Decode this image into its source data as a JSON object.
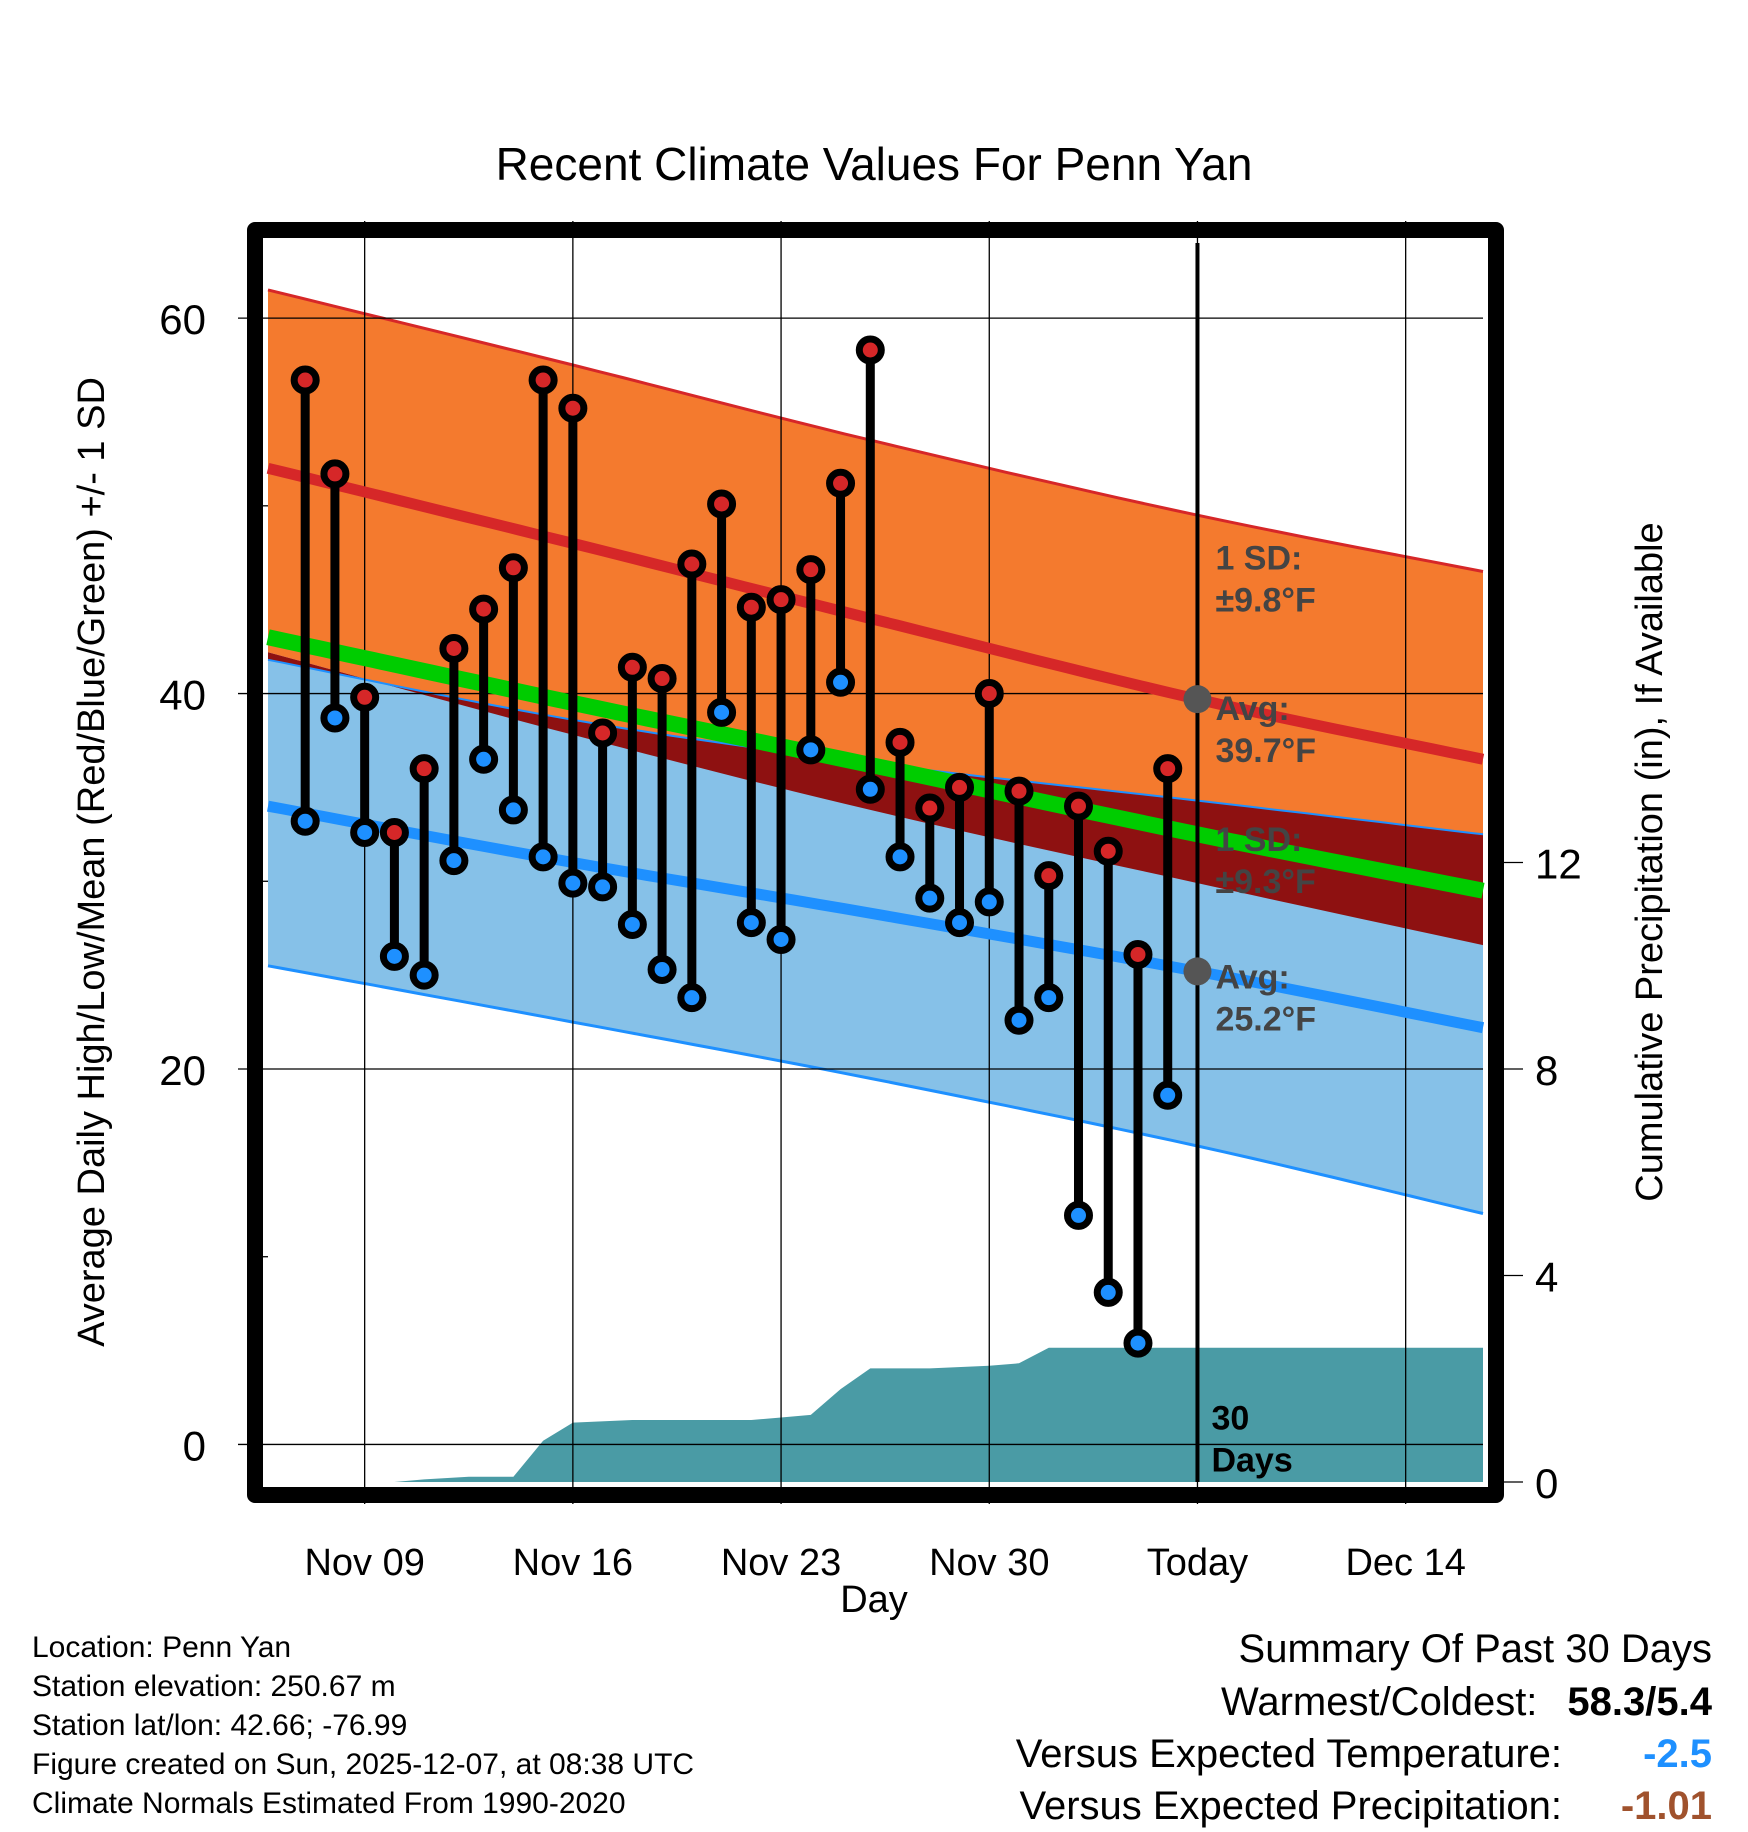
{
  "chart_data": {
    "type": "line",
    "title": "Recent Climate Values For Penn Yan",
    "xlabel": "Day",
    "ylabel": "Average Daily High/Low/Mean (Red/Blue/Green) +/- 1 SD",
    "y2label": "Cumulative Precipitation (in), If Available",
    "ylim": [
      -2,
      64
    ],
    "y2lim": [
      0,
      24
    ],
    "yticks": [
      "0",
      "20",
      "40",
      "60"
    ],
    "y2ticks": [
      "0",
      "4",
      "8",
      "12"
    ],
    "xticks": [
      "Nov 09",
      "Nov 16",
      "Nov 23",
      "Nov 30",
      "Today",
      "Dec 14"
    ],
    "xtick_days": [
      9,
      16,
      23,
      30,
      37,
      44
    ],
    "xrange_days": [
      5.75,
      46.6
    ],
    "today_day": 37,
    "normals": {
      "days": [
        5.75,
        16,
        26,
        37,
        46.6
      ],
      "high_avg": [
        52.0,
        48.0,
        44.0,
        39.7,
        36.5
      ],
      "high_upper": [
        61.5,
        57.5,
        53.5,
        49.5,
        46.5
      ],
      "low_avg": [
        34.0,
        31.0,
        28.3,
        25.2,
        22.2
      ],
      "low_lower": [
        25.5,
        22.5,
        19.5,
        15.9,
        12.3
      ],
      "mean": [
        43.0,
        39.5,
        36.2,
        32.5,
        29.5
      ],
      "low_upper": [
        41.8,
        38.6,
        36.3,
        34.3,
        32.5
      ],
      "high_lower": [
        42.2,
        37.8,
        33.8,
        29.9,
        26.6
      ]
    },
    "series": [
      {
        "name": "Daily High",
        "color": "#d62728",
        "days": [
          7,
          8,
          9,
          10,
          11,
          12,
          13,
          14,
          15,
          16,
          17,
          18,
          19,
          20,
          21,
          22,
          23,
          24,
          25,
          26,
          27,
          28,
          29,
          30,
          31,
          32,
          33,
          34,
          35,
          36
        ],
        "values": [
          56.7,
          51.7,
          39.8,
          32.6,
          36.0,
          42.4,
          44.5,
          46.7,
          56.7,
          55.2,
          37.9,
          41.4,
          40.8,
          46.9,
          50.1,
          44.6,
          45.0,
          46.6,
          51.2,
          58.3,
          37.4,
          33.9,
          35.0,
          40.0,
          34.8,
          30.3,
          34.0,
          31.6,
          26.1,
          36.0
        ]
      },
      {
        "name": "Daily Low",
        "color": "#1e90ff",
        "days": [
          7,
          8,
          9,
          10,
          11,
          12,
          13,
          14,
          15,
          16,
          17,
          18,
          19,
          20,
          21,
          22,
          23,
          24,
          25,
          26,
          27,
          28,
          29,
          30,
          31,
          32,
          33,
          34,
          35,
          36
        ],
        "values": [
          33.2,
          38.7,
          32.6,
          26.0,
          25.0,
          31.1,
          36.5,
          33.8,
          31.3,
          29.9,
          29.7,
          27.7,
          25.3,
          23.8,
          39.0,
          27.8,
          26.9,
          37.0,
          40.6,
          34.9,
          31.3,
          29.1,
          27.8,
          28.9,
          22.6,
          23.8,
          12.2,
          8.1,
          5.4,
          18.6
        ]
      },
      {
        "name": "Cumulative Precipitation",
        "color": "#4a9ba5",
        "axis": "right",
        "days": [
          5.75,
          8,
          10,
          11,
          12.5,
          14,
          15,
          16,
          18,
          20,
          22,
          23,
          24,
          25,
          26,
          28,
          30,
          31,
          32,
          33,
          37,
          46.6
        ],
        "values": [
          0,
          0,
          0,
          0.05,
          0.1,
          0.1,
          0.8,
          1.15,
          1.2,
          1.2,
          1.2,
          1.25,
          1.3,
          1.8,
          2.2,
          2.2,
          2.25,
          2.3,
          2.6,
          2.6,
          2.6,
          2.6
        ]
      }
    ],
    "annotations": [
      {
        "id": "high-sd",
        "lines": [
          "1 SD:",
          "±9.8°F"
        ],
        "color": "#444444"
      },
      {
        "id": "high-avg",
        "lines": [
          "Avg:",
          "39.7°F"
        ],
        "color": "#444444"
      },
      {
        "id": "low-sd",
        "lines": [
          "1 SD:",
          "±9.3°F"
        ],
        "color": "#444444"
      },
      {
        "id": "low-avg",
        "lines": [
          "Avg:",
          "25.2°F"
        ],
        "color": "#444444"
      },
      {
        "id": "window",
        "lines": [
          "30",
          "Days"
        ],
        "color": "#000000"
      }
    ],
    "colors": {
      "high_band": "#f47a2e",
      "high_line": "#d62728",
      "low_band": "#86c1e8",
      "low_line": "#1e90ff",
      "mean_line": "#00cc00",
      "overlap": "#8e1111",
      "precip": "#4a9ba5"
    }
  },
  "info": {
    "location": "Location: Penn Yan",
    "elevation": "Station elevation: 250.67 m",
    "latlon": "Station lat/lon: 42.66; -76.99",
    "created": "Figure created on Sun, 2025-12-07, at 08:38 UTC",
    "normals": "Climate Normals Estimated From 1990-2020"
  },
  "summary": {
    "title": "Summary Of Past 30 Days",
    "warmest_label": "Warmest/Coldest:",
    "warmest_value": "58.3/5.4",
    "temp_label": "Versus Expected Temperature:",
    "temp_value": "-2.5",
    "temp_color": "#1e90ff",
    "precip_label": "Versus Expected Precipitation:",
    "precip_value": "-1.01",
    "precip_color": "#a0522d"
  }
}
